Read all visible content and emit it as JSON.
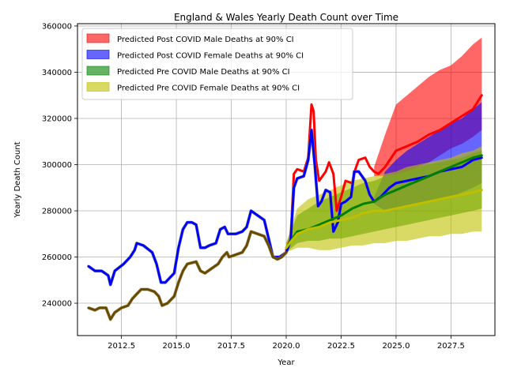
{
  "chart_data": {
    "type": "line",
    "title": "England & Wales Yearly Death Count over Time",
    "xlabel": "Year",
    "ylabel": "Yearly Death Count",
    "xlim": [
      2010.5,
      2029.5
    ],
    "ylim": [
      226000,
      361000
    ],
    "xticks": [
      2012.5,
      2015.0,
      2017.5,
      2020.0,
      2022.5,
      2025.0,
      2027.5
    ],
    "xtick_labels": [
      "2012.5",
      "2015.0",
      "2017.5",
      "2020.0",
      "2022.5",
      "2025.0",
      "2027.5"
    ],
    "yticks": [
      240000,
      260000,
      280000,
      300000,
      320000,
      340000,
      360000
    ],
    "ytick_labels": [
      "240000",
      "260000",
      "280000",
      "300000",
      "320000",
      "340000",
      "360000"
    ],
    "grid": true,
    "legend_position": "top-left",
    "legend": [
      {
        "label": "Predicted Post COVID Male Deaths at 90% CI",
        "color": "#ff0000"
      },
      {
        "label": "Predicted Post COVID Female Deaths at 90% CI",
        "color": "#0000ff"
      },
      {
        "label": "Predicted Pre COVID Male Deaths at 90% CI",
        "color": "#008000"
      },
      {
        "label": "Predicted Pre COVID Female Deaths at 90% CI",
        "color": "#bfbf00"
      }
    ],
    "series": [
      {
        "role": "line",
        "color": "#ff0000",
        "points": [
          [
            2020.0,
            263000
          ],
          [
            2020.2,
            268000
          ],
          [
            2020.35,
            296000
          ],
          [
            2020.5,
            298000
          ],
          [
            2020.8,
            297000
          ],
          [
            2021.0,
            303000
          ],
          [
            2021.15,
            326000
          ],
          [
            2021.25,
            323000
          ],
          [
            2021.35,
            302000
          ],
          [
            2021.5,
            293000
          ],
          [
            2021.8,
            297000
          ],
          [
            2021.95,
            301000
          ],
          [
            2022.15,
            296000
          ],
          [
            2022.3,
            280000
          ],
          [
            2022.5,
            286000
          ],
          [
            2022.7,
            293000
          ],
          [
            2023.0,
            292000
          ],
          [
            2023.15,
            298000
          ],
          [
            2023.3,
            302000
          ],
          [
            2023.6,
            303000
          ],
          [
            2023.8,
            299000
          ],
          [
            2024.0,
            297000
          ],
          [
            2024.2,
            296000
          ],
          [
            2024.5,
            299000
          ],
          [
            2025.0,
            306000
          ],
          [
            2025.5,
            308000
          ],
          [
            2026.0,
            310000
          ],
          [
            2026.5,
            313000
          ],
          [
            2027.0,
            315000
          ],
          [
            2027.5,
            318000
          ],
          [
            2028.0,
            321000
          ],
          [
            2028.5,
            324000
          ],
          [
            2028.9,
            330000
          ]
        ]
      },
      {
        "role": "line",
        "color": "#0000ff",
        "points": [
          [
            2011.0,
            256000
          ],
          [
            2011.3,
            254000
          ],
          [
            2011.6,
            254000
          ],
          [
            2011.9,
            252000
          ],
          [
            2012.0,
            248000
          ],
          [
            2012.2,
            254000
          ],
          [
            2012.6,
            257000
          ],
          [
            2012.9,
            260000
          ],
          [
            2013.1,
            263000
          ],
          [
            2013.2,
            266000
          ],
          [
            2013.5,
            265000
          ],
          [
            2013.9,
            262000
          ],
          [
            2014.1,
            257000
          ],
          [
            2014.3,
            249000
          ],
          [
            2014.5,
            249000
          ],
          [
            2014.9,
            253000
          ],
          [
            2015.1,
            264000
          ],
          [
            2015.3,
            272000
          ],
          [
            2015.5,
            275000
          ],
          [
            2015.7,
            275000
          ],
          [
            2015.9,
            274000
          ],
          [
            2016.1,
            264000
          ],
          [
            2016.3,
            264000
          ],
          [
            2016.5,
            265000
          ],
          [
            2016.8,
            266000
          ],
          [
            2017.0,
            272000
          ],
          [
            2017.2,
            273000
          ],
          [
            2017.35,
            270000
          ],
          [
            2017.7,
            270000
          ],
          [
            2018.0,
            271000
          ],
          [
            2018.2,
            273000
          ],
          [
            2018.4,
            280000
          ],
          [
            2018.7,
            278000
          ],
          [
            2019.0,
            276000
          ],
          [
            2019.2,
            268000
          ],
          [
            2019.4,
            260000
          ],
          [
            2019.7,
            260000
          ],
          [
            2020.0,
            262000
          ],
          [
            2020.2,
            267000
          ],
          [
            2020.35,
            290000
          ],
          [
            2020.5,
            294000
          ],
          [
            2020.8,
            295000
          ],
          [
            2021.0,
            302000
          ],
          [
            2021.15,
            315000
          ],
          [
            2021.3,
            300000
          ],
          [
            2021.45,
            282000
          ],
          [
            2021.6,
            284000
          ],
          [
            2021.8,
            289000
          ],
          [
            2022.0,
            288000
          ],
          [
            2022.15,
            271000
          ],
          [
            2022.35,
            275000
          ],
          [
            2022.5,
            283000
          ],
          [
            2022.7,
            284000
          ],
          [
            2022.95,
            286000
          ],
          [
            2023.1,
            297000
          ],
          [
            2023.3,
            297000
          ],
          [
            2023.6,
            293000
          ],
          [
            2023.8,
            287000
          ],
          [
            2024.0,
            284000
          ],
          [
            2024.3,
            286000
          ],
          [
            2024.7,
            290000
          ],
          [
            2025.0,
            292000
          ],
          [
            2025.5,
            293000
          ],
          [
            2026.0,
            294000
          ],
          [
            2026.5,
            295000
          ],
          [
            2027.0,
            297000
          ],
          [
            2027.5,
            298000
          ],
          [
            2028.0,
            299000
          ],
          [
            2028.5,
            302000
          ],
          [
            2028.9,
            303000
          ]
        ]
      },
      {
        "role": "line",
        "color": "#6b4a00",
        "points": [
          [
            2011.0,
            238000
          ],
          [
            2011.3,
            237000
          ],
          [
            2011.5,
            238000
          ],
          [
            2011.8,
            238000
          ],
          [
            2012.0,
            233000
          ],
          [
            2012.2,
            236000
          ],
          [
            2012.5,
            238000
          ],
          [
            2012.8,
            239000
          ],
          [
            2013.0,
            242000
          ],
          [
            2013.2,
            244000
          ],
          [
            2013.4,
            246000
          ],
          [
            2013.7,
            246000
          ],
          [
            2014.0,
            245000
          ],
          [
            2014.2,
            243000
          ],
          [
            2014.35,
            239000
          ],
          [
            2014.6,
            240000
          ],
          [
            2014.9,
            243000
          ],
          [
            2015.1,
            249000
          ],
          [
            2015.3,
            254000
          ],
          [
            2015.5,
            257000
          ],
          [
            2015.9,
            258000
          ],
          [
            2016.1,
            254000
          ],
          [
            2016.3,
            253000
          ],
          [
            2016.6,
            255000
          ],
          [
            2016.9,
            257000
          ],
          [
            2017.1,
            260000
          ],
          [
            2017.3,
            262000
          ],
          [
            2017.4,
            260000
          ],
          [
            2017.7,
            261000
          ],
          [
            2018.0,
            262000
          ],
          [
            2018.2,
            265000
          ],
          [
            2018.4,
            271000
          ],
          [
            2018.7,
            270000
          ],
          [
            2019.0,
            269000
          ],
          [
            2019.2,
            265000
          ],
          [
            2019.4,
            260000
          ],
          [
            2019.6,
            259000
          ],
          [
            2019.8,
            260000
          ],
          [
            2020.0,
            262000
          ]
        ]
      },
      {
        "role": "line",
        "color": "#008000",
        "points": [
          [
            2020.0,
            264000
          ],
          [
            2020.5,
            271000
          ],
          [
            2021.0,
            272000
          ],
          [
            2021.5,
            274000
          ],
          [
            2022.0,
            276000
          ],
          [
            2022.5,
            278000
          ],
          [
            2023.0,
            281000
          ],
          [
            2023.5,
            283000
          ],
          [
            2024.0,
            284000
          ],
          [
            2024.5,
            287000
          ],
          [
            2025.0,
            289000
          ],
          [
            2025.5,
            291000
          ],
          [
            2026.0,
            293000
          ],
          [
            2026.5,
            295000
          ],
          [
            2027.0,
            297000
          ],
          [
            2027.5,
            299000
          ],
          [
            2028.0,
            301000
          ],
          [
            2028.5,
            303000
          ],
          [
            2028.9,
            304000
          ]
        ]
      },
      {
        "role": "line",
        "color": "#bfbf00",
        "points": [
          [
            2020.0,
            264000
          ],
          [
            2020.5,
            270000
          ],
          [
            2021.0,
            272000
          ],
          [
            2021.5,
            273000
          ],
          [
            2022.0,
            275000
          ],
          [
            2022.5,
            276000
          ],
          [
            2023.0,
            277000
          ],
          [
            2023.5,
            279000
          ],
          [
            2024.0,
            280000
          ],
          [
            2024.5,
            280000
          ],
          [
            2025.0,
            281000
          ],
          [
            2025.5,
            282000
          ],
          [
            2026.0,
            283000
          ],
          [
            2026.5,
            284000
          ],
          [
            2027.0,
            285000
          ],
          [
            2027.5,
            286000
          ],
          [
            2028.0,
            287000
          ],
          [
            2028.5,
            288000
          ],
          [
            2028.9,
            289000
          ]
        ]
      },
      {
        "role": "band",
        "color": "#ff0000",
        "x": [
          2024.0,
          2024.5,
          2025.0,
          2025.5,
          2026.0,
          2026.5,
          2027.0,
          2027.5,
          2028.0,
          2028.5,
          2028.9
        ],
        "upper": [
          299000,
          313000,
          326000,
          330000,
          334000,
          338000,
          341000,
          343000,
          347000,
          352000,
          355000
        ],
        "lower": [
          295000,
          295000,
          296000,
          297000,
          299000,
          301000,
          304000,
          307000,
          309000,
          312000,
          315000
        ]
      },
      {
        "role": "band",
        "color": "#0000ff",
        "x": [
          2024.0,
          2024.5,
          2025.0,
          2025.5,
          2026.0,
          2026.5,
          2027.0,
          2027.5,
          2028.0,
          2028.5,
          2028.9
        ],
        "upper": [
          286000,
          297000,
          302000,
          306000,
          309000,
          312000,
          315000,
          318000,
          320000,
          324000,
          327000
        ],
        "lower": [
          283000,
          280000,
          281000,
          282000,
          283000,
          284000,
          285000,
          286000,
          288000,
          290000,
          292000
        ]
      },
      {
        "role": "band",
        "color": "#008000",
        "x": [
          2020.0,
          2020.5,
          2021.0,
          2021.5,
          2022.0,
          2022.5,
          2023.0,
          2023.5,
          2024.0,
          2024.5,
          2025.0,
          2025.5,
          2026.0,
          2026.5,
          2027.0,
          2027.5,
          2028.0,
          2028.5,
          2028.9
        ],
        "upper": [
          266000,
          278000,
          281000,
          284000,
          286000,
          288000,
          290000,
          292000,
          293000,
          295000,
          296000,
          298000,
          299000,
          300000,
          301000,
          302000,
          303000,
          305000,
          306000
        ],
        "lower": [
          262000,
          266000,
          267000,
          267000,
          268000,
          268000,
          269000,
          270000,
          271000,
          272000,
          273000,
          274000,
          275000,
          276000,
          277000,
          278000,
          279000,
          280000,
          281000
        ]
      },
      {
        "role": "band",
        "color": "#bfbf00",
        "x": [
          2020.0,
          2020.5,
          2021.0,
          2021.5,
          2022.0,
          2022.5,
          2023.0,
          2023.5,
          2024.0,
          2024.5,
          2025.0,
          2025.5,
          2026.0,
          2026.5,
          2027.0,
          2027.5,
          2028.0,
          2028.5,
          2028.9
        ],
        "upper": [
          266000,
          281000,
          285000,
          287000,
          289000,
          291000,
          293000,
          294000,
          295000,
          296000,
          297000,
          299000,
          300000,
          301000,
          302000,
          303000,
          305000,
          306000,
          308000
        ],
        "lower": [
          262000,
          264000,
          264000,
          263000,
          263000,
          264000,
          265000,
          265000,
          266000,
          266000,
          267000,
          267000,
          268000,
          269000,
          269000,
          270000,
          270000,
          271000,
          271000
        ]
      }
    ]
  }
}
